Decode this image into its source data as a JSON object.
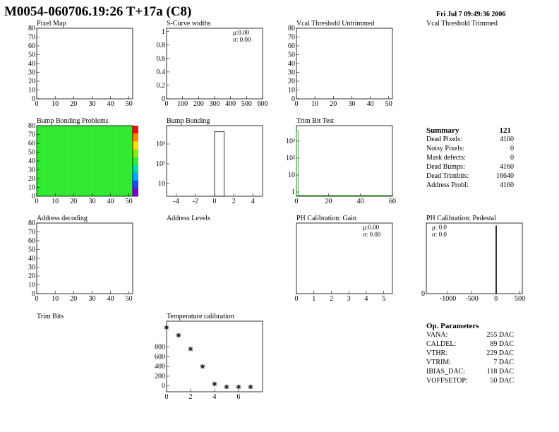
{
  "header": {
    "title": "M0054-060706.19:26 T+17a (C8)",
    "date": "Fri Jul  7 09:49:36 2006"
  },
  "chart_data": [
    {
      "id": "pixel-map",
      "type": "heatmap",
      "title": "Pixel Map",
      "xticks": [
        "0",
        "10",
        "20",
        "30",
        "40",
        "50"
      ],
      "yticks": [
        "0",
        "10",
        "20",
        "30",
        "40",
        "50",
        "60",
        "70",
        "80"
      ],
      "xlim": [
        0,
        52
      ],
      "ylim": [
        0,
        80
      ],
      "values": []
    },
    {
      "id": "s-curve-widths",
      "type": "bar",
      "title": "S-Curve widths",
      "xticks": [
        "0",
        "100",
        "200",
        "300",
        "400",
        "500",
        "600"
      ],
      "yticks": [
        "0",
        "0.2",
        "0.4",
        "0.6",
        "0.8",
        "1"
      ],
      "xlim": [
        0,
        600
      ],
      "ylim": [
        0,
        1.05
      ],
      "stats": [
        "μ:0.00",
        "σ: 0.00"
      ],
      "values": []
    },
    {
      "id": "vcal-threshold-untrimmed",
      "type": "heatmap",
      "title": "Vcal Threshold Untrimmed",
      "xticks": [
        "0",
        "10",
        "20",
        "30",
        "40",
        "50"
      ],
      "yticks": [
        "0",
        "10",
        "20",
        "30",
        "40",
        "50",
        "60",
        "70",
        "80"
      ],
      "xlim": [
        0,
        52
      ],
      "ylim": [
        0,
        80
      ],
      "values": []
    },
    {
      "id": "vcal-threshold-trimmed",
      "type": "heatmap",
      "title": "Vcal Threshold Trimmed",
      "values": []
    },
    {
      "id": "bump-bonding-problems",
      "type": "heatmap",
      "title": "Bump Bonding Problems",
      "xticks": [
        "0",
        "10",
        "20",
        "30",
        "40",
        "50"
      ],
      "yticks": [
        "0",
        "10",
        "20",
        "30",
        "40",
        "50",
        "60",
        "70",
        "80"
      ],
      "xlim": [
        0,
        52
      ],
      "ylim": [
        0,
        80
      ],
      "fill_color": "#33ee33",
      "palette": [
        "#ee1111",
        "#ff8800",
        "#ffdd00",
        "#88ee00",
        "#33ee33",
        "#00ddaa",
        "#00aaff",
        "#2244ff",
        "#7700cc"
      ]
    },
    {
      "id": "bump-bonding",
      "type": "bar",
      "title": "Bump Bonding",
      "scale": "log",
      "xticks": [
        "-4",
        "-2",
        "0",
        "2",
        "4"
      ],
      "yticks": [
        "10",
        "10²",
        "10³"
      ],
      "xlim": [
        -5,
        5
      ],
      "bins": [
        {
          "x0": 0,
          "x1": 1,
          "value": 4160
        }
      ]
    },
    {
      "id": "trim-bit-test",
      "type": "bar",
      "title": "Trim Bit Test",
      "scale": "log",
      "xticks": [
        "0",
        "20",
        "40",
        "60"
      ],
      "yticks": [
        "1",
        "10",
        "10²",
        "10³"
      ],
      "xlim": [
        0,
        60
      ],
      "line_color": "#00aa00",
      "bins": [
        {
          "x0": 0,
          "x1": 1,
          "value": 4160
        }
      ]
    },
    {
      "id": "address-decoding",
      "type": "heatmap",
      "title": "Address decoding",
      "xticks": [
        "0",
        "10",
        "20",
        "30",
        "40",
        "50"
      ],
      "yticks": [
        "0",
        "10",
        "20",
        "30",
        "40",
        "50",
        "60",
        "70",
        "80"
      ],
      "xlim": [
        0,
        52
      ],
      "ylim": [
        0,
        80
      ],
      "values": []
    },
    {
      "id": "address-levels",
      "type": "bar",
      "title": "Address Levels",
      "values": []
    },
    {
      "id": "ph-calibration-gain",
      "type": "bar",
      "title": "PH Calibration: Gain",
      "xticks": [
        "0",
        "1",
        "2",
        "3",
        "4",
        "5"
      ],
      "xlim": [
        0,
        5.5
      ],
      "stats": [
        "μ:0.00",
        "σ: 0.00"
      ],
      "values": []
    },
    {
      "id": "ph-calibration-pedestal",
      "type": "bar",
      "title": "PH Calibration: Pedestal",
      "xticks": [
        "-1000",
        "-500",
        "0",
        "500"
      ],
      "yticks": [
        "0"
      ],
      "xlim": [
        -1450,
        550
      ],
      "stats": [
        "μ: 0.0",
        "σ:  0.0"
      ],
      "bins": [
        {
          "x0": 0,
          "x1": 5,
          "value": 1
        }
      ]
    },
    {
      "id": "trim-bits",
      "type": "bar",
      "title": "Trim Bits",
      "values": []
    },
    {
      "id": "temperature-calibration",
      "type": "scatter",
      "title": "Temperature calibration",
      "xticks": [
        "0",
        "2",
        "4",
        "6"
      ],
      "yticks": [
        "0",
        "200",
        "400",
        "600",
        "800"
      ],
      "xlim": [
        0,
        8
      ],
      "ylim": [
        -120,
        1330
      ],
      "x": [
        0,
        1,
        2,
        3,
        4,
        5,
        6,
        7
      ],
      "y": [
        1200,
        1040,
        760,
        400,
        40,
        -20,
        -20,
        -20
      ]
    }
  ],
  "summary": {
    "title": "Summary",
    "total": "121",
    "rows": [
      {
        "label": "Dead Pixels:",
        "value": "4160"
      },
      {
        "label": "Noisy Pixels:",
        "value": "0"
      },
      {
        "label": "Mask defects:",
        "value": "0"
      },
      {
        "label": "Dead Bumps:",
        "value": "4160"
      },
      {
        "label": "Dead Trimbits:",
        "value": "16640"
      },
      {
        "label": "Address Probl:",
        "value": "4160"
      }
    ]
  },
  "op_parameters": {
    "title": "Op. Parameters",
    "rows": [
      {
        "label": "VANA:",
        "value": "255 DAC"
      },
      {
        "label": "CALDEL:",
        "value": "89 DAC"
      },
      {
        "label": "VTHR:",
        "value": "229 DAC"
      },
      {
        "label": "VTRIM:",
        "value": "7 DAC"
      },
      {
        "label": "IBIAS_DAC:",
        "value": "118 DAC"
      },
      {
        "label": "VOFFSETOP:",
        "value": "50 DAC"
      }
    ]
  }
}
